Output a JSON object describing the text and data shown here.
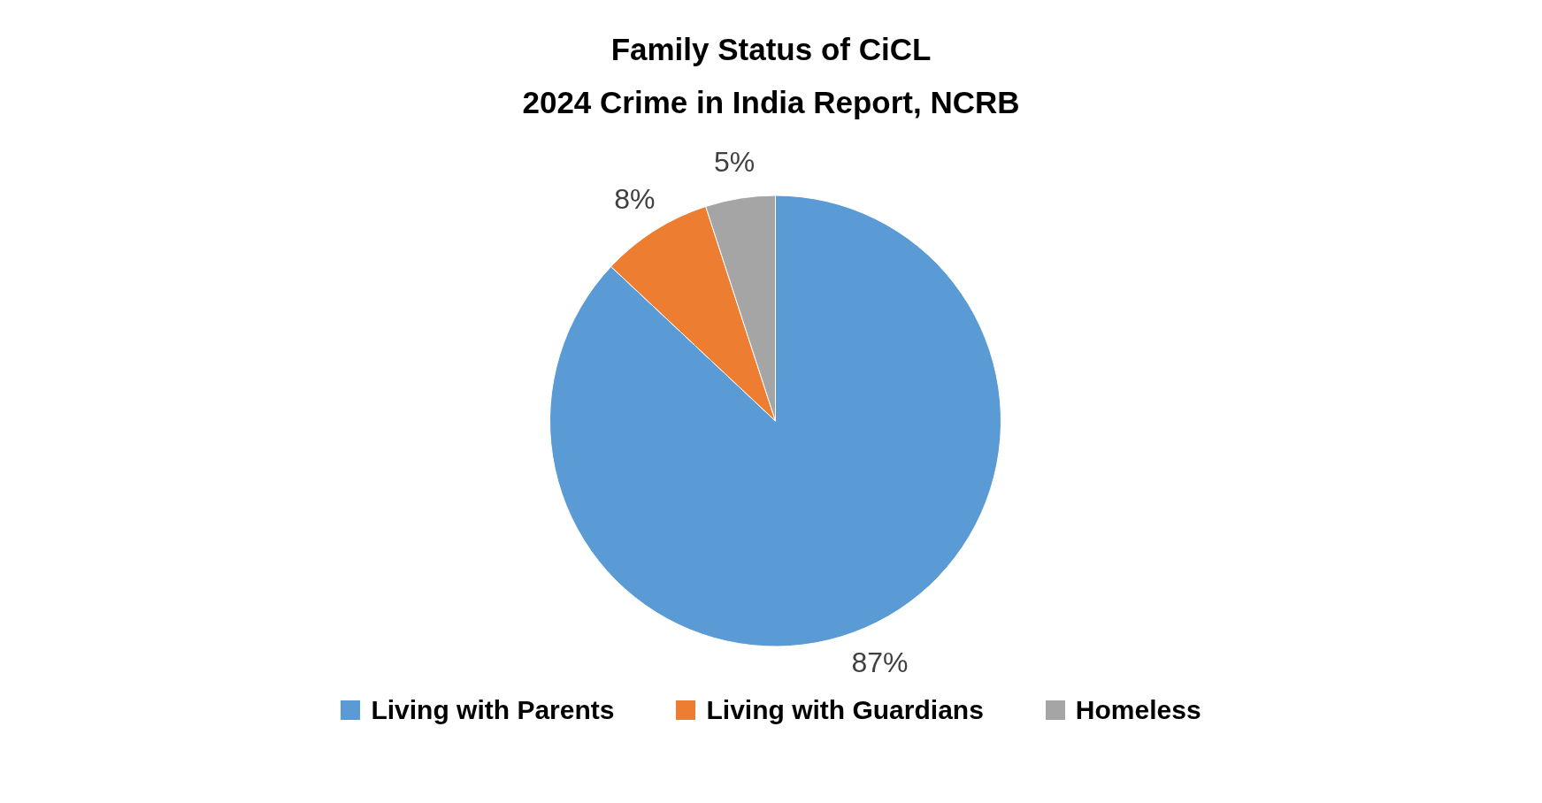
{
  "chart_data": {
    "type": "pie",
    "title": "Family Status of CiCL\n2024 Crime in India Report, NCRB",
    "categories": [
      "Living with Parents",
      "Living with Guardians",
      "Homeless"
    ],
    "values": [
      87,
      8,
      5
    ],
    "colors": [
      "#5b9bd5",
      "#ed7d31",
      "#a5a5a5"
    ],
    "value_labels": [
      "87%",
      "8%",
      "5%"
    ],
    "legend": "bottom"
  }
}
